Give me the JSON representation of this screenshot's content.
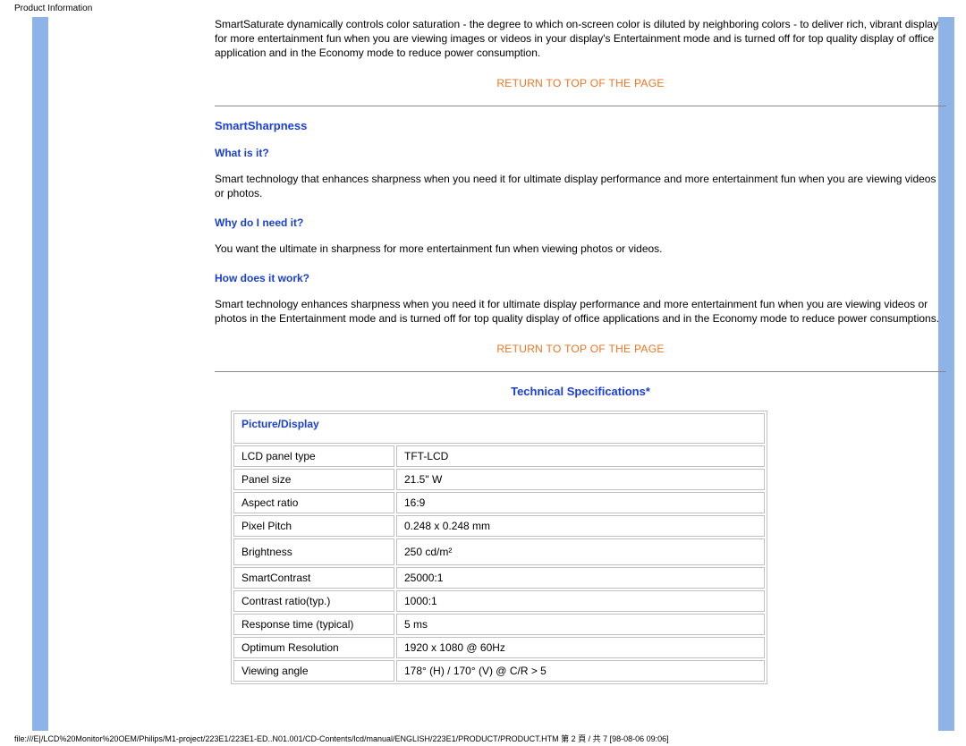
{
  "page_header": "Product Information",
  "intro_paragraph": "SmartSaturate dynamically controls color saturation - the degree to which on-screen color is diluted by neighboring colors - to deliver rich, vibrant display for more entertainment fun when you are viewing images or videos in your display's Entertainment mode and is turned off for top quality display of office application and in the Economy mode to reduce power consumption.",
  "return_link": "RETURN TO TOP OF THE PAGE",
  "sections": {
    "smartsharpness": {
      "title": "SmartSharpness",
      "q1_heading": "What is it?",
      "q1_body": "Smart technology that enhances sharpness when you need it for ultimate display performance and more entertainment fun when you are viewing videos or photos.",
      "q2_heading": "Why do I need it?",
      "q2_body": "You want the ultimate in sharpness for more entertainment fun when viewing photos or videos.",
      "q3_heading": "How does it work?",
      "q3_body": "Smart technology enhances sharpness when you need it for ultimate display performance and more entertainment fun when you are viewing videos or photos in the Entertainment mode and is turned off for top quality display of office applications and in the Economy mode to reduce power consumptions."
    },
    "tech_specs": {
      "title": "Technical Specifications*"
    }
  },
  "spec_table": {
    "header": "Picture/Display",
    "rows": [
      {
        "label": "LCD panel type",
        "value": "TFT-LCD"
      },
      {
        "label": "Panel size",
        "value": "21.5\" W"
      },
      {
        "label": "Aspect ratio",
        "value": "16:9"
      },
      {
        "label": "Pixel Pitch",
        "value": "0.248 x 0.248 mm"
      },
      {
        "label": "Brightness",
        "value": "250 cd/m²"
      },
      {
        "label": "SmartContrast",
        "value": "25000:1"
      },
      {
        "label": "Contrast ratio(typ.)",
        "value": "1000:1"
      },
      {
        "label": "Response time (typical)",
        "value": "5 ms"
      },
      {
        "label": "Optimum Resolution",
        "value": "1920 x 1080 @ 60Hz"
      },
      {
        "label": "Viewing angle",
        "value": "178° (H) / 170° (V) @ C/R > 5"
      }
    ]
  },
  "footer_path": "file:///E|/LCD%20Monitor%20OEM/Philips/M1-project/223E1/223E1-ED..N01.001/CD-Contents/lcd/manual/ENGLISH/223E1/PRODUCT/PRODUCT.HTM 第 2 頁 / 共 7 [98-08-06 09:06]",
  "colors": {
    "side_bar": "#8db3e8",
    "blue_heading": "#1a3fd8",
    "orange_link": "#ed7521",
    "border": "#c0c0c0"
  }
}
